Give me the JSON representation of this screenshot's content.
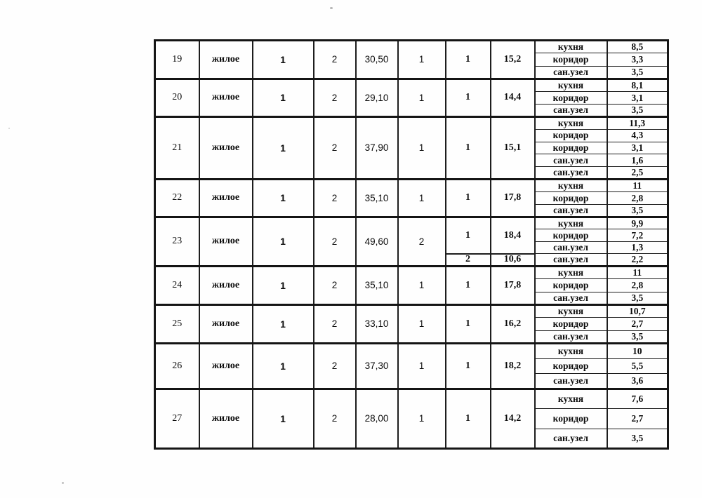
{
  "document": {
    "kind": "scanned-apartment-area-table",
    "language": "ru",
    "colors": {
      "border": "#1a1a1a",
      "text": "#0d0d0d",
      "background": "#ffffff"
    },
    "table": {
      "rows": [
        {
          "number": "19",
          "purpose": "жилое",
          "col3": "1",
          "col4": "2",
          "total_area": "30,50",
          "col6": "1",
          "sections": [
            {
              "col7": "1",
              "living_area": "15,2",
              "rooms": [
                {
                  "name": "кухня",
                  "area": "8,5"
                },
                {
                  "name": "коридор",
                  "area": "3,3"
                },
                {
                  "name": "сан.узел",
                  "area": "3,5"
                }
              ]
            }
          ]
        },
        {
          "number": "20",
          "purpose": "жилое",
          "col3": "1",
          "col4": "2",
          "total_area": "29,10",
          "col6": "1",
          "sections": [
            {
              "col7": "1",
              "living_area": "14,4",
              "rooms": [
                {
                  "name": "кухня",
                  "area": "8,1"
                },
                {
                  "name": "коридор",
                  "area": "3,1"
                },
                {
                  "name": "сан.узел",
                  "area": "3,5"
                }
              ]
            }
          ]
        },
        {
          "number": "21",
          "purpose": "жилое",
          "col3": "1",
          "col4": "2",
          "total_area": "37,90",
          "col6": "1",
          "sections": [
            {
              "col7": "1",
              "living_area": "15,1",
              "rooms": [
                {
                  "name": "кухня",
                  "area": "11,3"
                },
                {
                  "name": "коридор",
                  "area": "4,3"
                },
                {
                  "name": "коридор",
                  "area": "3,1"
                },
                {
                  "name": "сан.узел",
                  "area": "1,6"
                },
                {
                  "name": "сан.узел",
                  "area": "2,5"
                }
              ]
            }
          ]
        },
        {
          "number": "22",
          "purpose": "жилое",
          "col3": "1",
          "col4": "2",
          "total_area": "35,10",
          "col6": "1",
          "sections": [
            {
              "col7": "1",
              "living_area": "17,8",
              "rooms": [
                {
                  "name": "кухня",
                  "area": "11"
                },
                {
                  "name": "коридор",
                  "area": "2,8"
                },
                {
                  "name": "сан.узел",
                  "area": "3,5"
                }
              ]
            }
          ]
        },
        {
          "number": "23",
          "purpose": "жилое",
          "col3": "1",
          "col4": "2",
          "total_area": "49,60",
          "col6": "2",
          "sections": [
            {
              "col7": "1",
              "living_area": "18,4",
              "rooms": [
                {
                  "name": "кухня",
                  "area": "9,9"
                },
                {
                  "name": "коридор",
                  "area": "7,2"
                },
                {
                  "name": "сан.узел",
                  "area": "1,3"
                }
              ]
            },
            {
              "col7": "2",
              "living_area": "10,6",
              "rooms": [
                {
                  "name": "сан.узел",
                  "area": "2,2"
                }
              ]
            }
          ]
        },
        {
          "number": "24",
          "purpose": "жилое",
          "col3": "1",
          "col4": "2",
          "total_area": "35,10",
          "col6": "1",
          "sections": [
            {
              "col7": "1",
              "living_area": "17,8",
              "rooms": [
                {
                  "name": "кухня",
                  "area": "11"
                },
                {
                  "name": "коридор",
                  "area": "2,8"
                },
                {
                  "name": "сан.узел",
                  "area": "3,5"
                }
              ]
            }
          ]
        },
        {
          "number": "25",
          "purpose": "жилое",
          "col3": "1",
          "col4": "2",
          "total_area": "33,10",
          "col6": "1",
          "sections": [
            {
              "col7": "1",
              "living_area": "16,2",
              "rooms": [
                {
                  "name": "кухня",
                  "area": "10,7"
                },
                {
                  "name": "коридор",
                  "area": "2,7"
                },
                {
                  "name": "сан.узел",
                  "area": "3,5"
                }
              ]
            }
          ]
        },
        {
          "number": "26",
          "purpose": "жилое",
          "col3": "1",
          "col4": "2",
          "total_area": "37,30",
          "col6": "1",
          "sections": [
            {
              "col7": "1",
              "living_area": "18,2",
              "rooms": [
                {
                  "name": "кухня",
                  "area": "10"
                },
                {
                  "name": "коридор",
                  "area": "5,5"
                },
                {
                  "name": "сан.узел",
                  "area": "3,6"
                }
              ]
            }
          ]
        },
        {
          "number": "27",
          "purpose": "жилое",
          "col3": "1",
          "col4": "2",
          "total_area": "28,00",
          "col6": "1",
          "sections": [
            {
              "col7": "1",
              "living_area": "14,2",
              "rooms": [
                {
                  "name": "кухня",
                  "area": "7,6"
                },
                {
                  "name": "коридор",
                  "area": "2,7"
                },
                {
                  "name": "сан.узел",
                  "area": "3,5"
                }
              ]
            }
          ]
        }
      ]
    }
  }
}
